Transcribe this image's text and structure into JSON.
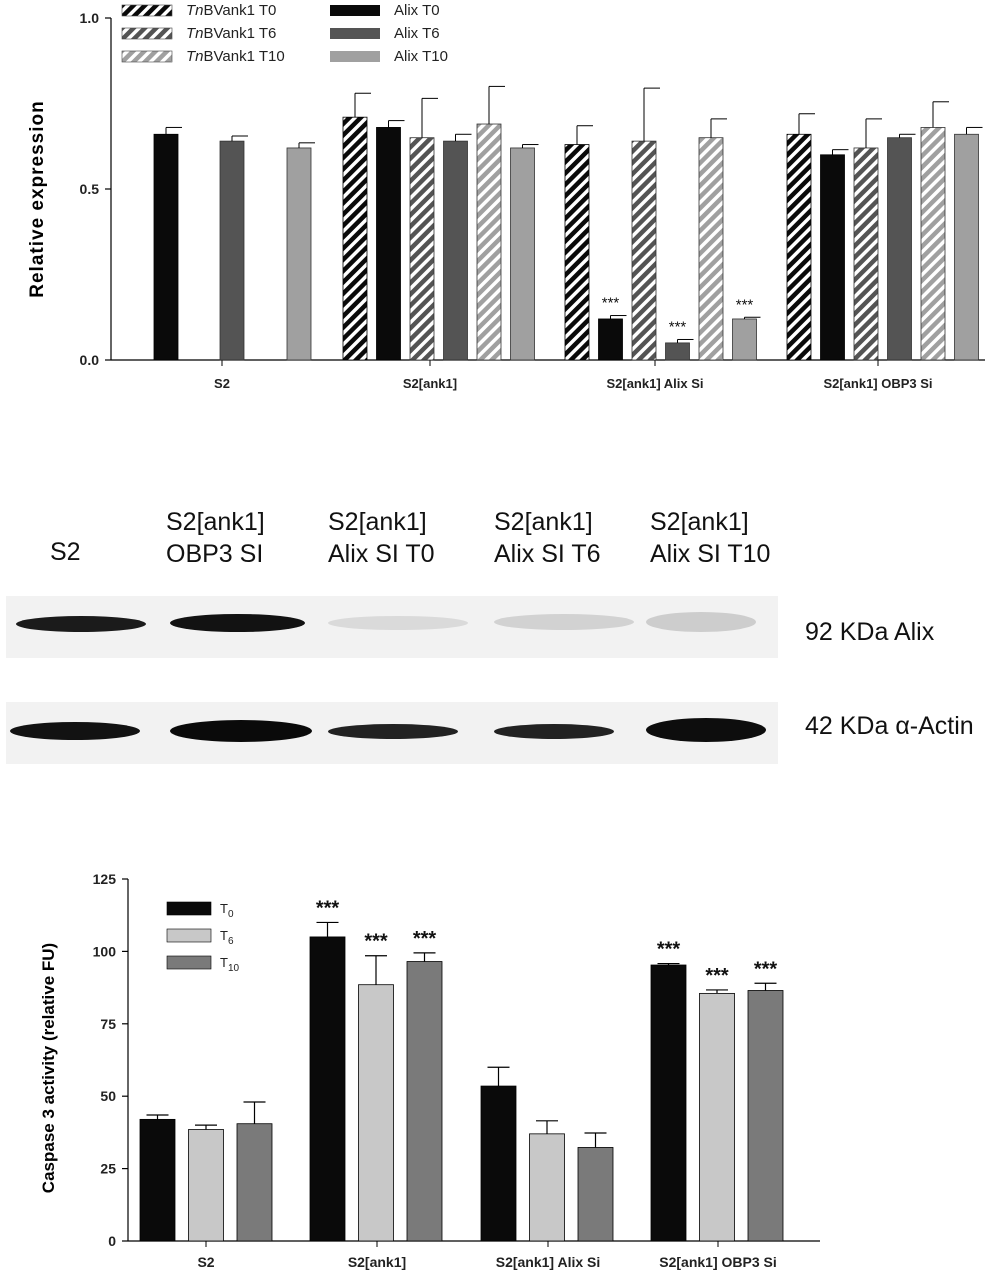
{
  "colors": {
    "t0": "#0a0a0a",
    "t6": "#545454",
    "t10": "#a0a0a0",
    "c3_t0": "#0a0a0a",
    "c3_t6": "#c8c8c8",
    "c3_t10": "#7a7a7a"
  },
  "chart_data": [
    {
      "type": "bar",
      "ylabel": "Relative expression",
      "ylim": [
        0,
        1.0
      ],
      "yticks": [
        "0.0",
        "0.5",
        "1.0"
      ],
      "categories": [
        "S2",
        "S2[ank1]",
        "S2[ank1] Alix Si",
        "S2[ank1] OBP3 Si"
      ],
      "legend": {
        "placement": "top-left",
        "entries": [
          {
            "italic": "Tn",
            "text": "BVank1 T0",
            "pattern": "hatched",
            "shade": "t0"
          },
          {
            "italic": "Tn",
            "text": "BVank1 T6",
            "pattern": "hatched",
            "shade": "t6"
          },
          {
            "italic": "Tn",
            "text": "BVank1 T10",
            "pattern": "hatched",
            "shade": "t10"
          },
          {
            "italic": "",
            "text": "Alix T0",
            "pattern": "solid",
            "shade": "t0"
          },
          {
            "italic": "",
            "text": "Alix T6",
            "pattern": "solid",
            "shade": "t6"
          },
          {
            "italic": "",
            "text": "Alix T10",
            "pattern": "solid",
            "shade": "t10"
          }
        ]
      },
      "series": [
        {
          "name": "TnBVank1 T0",
          "pattern": "hatched",
          "shade": "t0",
          "values": [
            null,
            0.71,
            0.63,
            0.66
          ],
          "errors": [
            null,
            0.07,
            0.055,
            0.06
          ],
          "stars": [
            "",
            "",
            "",
            ""
          ]
        },
        {
          "name": "Alix T0",
          "pattern": "solid",
          "shade": "t0",
          "values": [
            0.66,
            0.68,
            0.12,
            0.6
          ],
          "errors": [
            0.02,
            0.02,
            0.01,
            0.015
          ],
          "stars": [
            "",
            "",
            "***",
            ""
          ]
        },
        {
          "name": "TnBVank1 T6",
          "pattern": "hatched",
          "shade": "t6",
          "values": [
            null,
            0.65,
            0.64,
            0.62
          ],
          "errors": [
            null,
            0.115,
            0.155,
            0.085
          ],
          "stars": [
            "",
            "",
            "",
            ""
          ]
        },
        {
          "name": "Alix T6",
          "pattern": "solid",
          "shade": "t6",
          "values": [
            0.64,
            0.64,
            0.05,
            0.65
          ],
          "errors": [
            0.015,
            0.02,
            0.01,
            0.01
          ],
          "stars": [
            "",
            "",
            "***",
            ""
          ]
        },
        {
          "name": "TnBVank1 T10",
          "pattern": "hatched",
          "shade": "t10",
          "values": [
            null,
            0.69,
            0.65,
            0.68
          ],
          "errors": [
            null,
            0.11,
            0.055,
            0.075
          ],
          "stars": [
            "",
            "",
            "",
            ""
          ]
        },
        {
          "name": "Alix T10",
          "pattern": "solid",
          "shade": "t10",
          "values": [
            0.62,
            0.62,
            0.12,
            0.66
          ],
          "errors": [
            0.015,
            0.01,
            0.005,
            0.02
          ],
          "stars": [
            "",
            "",
            "***",
            ""
          ]
        }
      ]
    },
    {
      "type": "bar",
      "ylabel": "Caspase 3 activity (relative FU)",
      "ylim": [
        0,
        125
      ],
      "yticks": [
        "0",
        "25",
        "50",
        "75",
        "100",
        "125"
      ],
      "categories": [
        "S2",
        "S2[ank1]",
        "S2[ank1] Alix Si",
        "S2[ank1] OBP3 Si"
      ],
      "legend": {
        "placement": "top-left",
        "entries": [
          {
            "text": "T",
            "sub": "0",
            "shade": "c3_t0"
          },
          {
            "text": "T",
            "sub": "6",
            "shade": "c3_t6"
          },
          {
            "text": "T",
            "sub": "10",
            "shade": "c3_t10"
          }
        ]
      },
      "series": [
        {
          "name": "T0",
          "shade": "c3_t0",
          "values": [
            42,
            105,
            53.5,
            95.3
          ],
          "errors": [
            1.5,
            5,
            6.5,
            0.5
          ],
          "stars": [
            "",
            "***",
            "",
            "***"
          ]
        },
        {
          "name": "T6",
          "shade": "c3_t6",
          "values": [
            38.5,
            88.5,
            37,
            85.5
          ],
          "errors": [
            1.5,
            10,
            4.5,
            1.2
          ],
          "stars": [
            "",
            "***",
            "",
            "***"
          ]
        },
        {
          "name": "T10",
          "shade": "c3_t10",
          "values": [
            40.5,
            96.5,
            32.3,
            86.5
          ],
          "errors": [
            7.5,
            3,
            5,
            2.5
          ],
          "stars": [
            "",
            "***",
            "",
            "***"
          ]
        }
      ]
    }
  ],
  "blot": {
    "lanes": [
      {
        "line1": "S2",
        "line2": ""
      },
      {
        "line1": "S2[ank1]",
        "line2": "OBP3 SI"
      },
      {
        "line1": "S2[ank1]",
        "line2": "Alix SI T0"
      },
      {
        "line1": "S2[ank1]",
        "line2": "Alix SI T6"
      },
      {
        "line1": "S2[ank1]",
        "line2": "Alix SI T10"
      }
    ],
    "bands": [
      {
        "label": "92 KDa Alix",
        "intensity": [
          0.85,
          0.95,
          0.12,
          0.18,
          0.2
        ]
      },
      {
        "label": "42 KDa α-Actin",
        "intensity": [
          0.95,
          0.98,
          0.85,
          0.85,
          0.95
        ]
      }
    ]
  }
}
